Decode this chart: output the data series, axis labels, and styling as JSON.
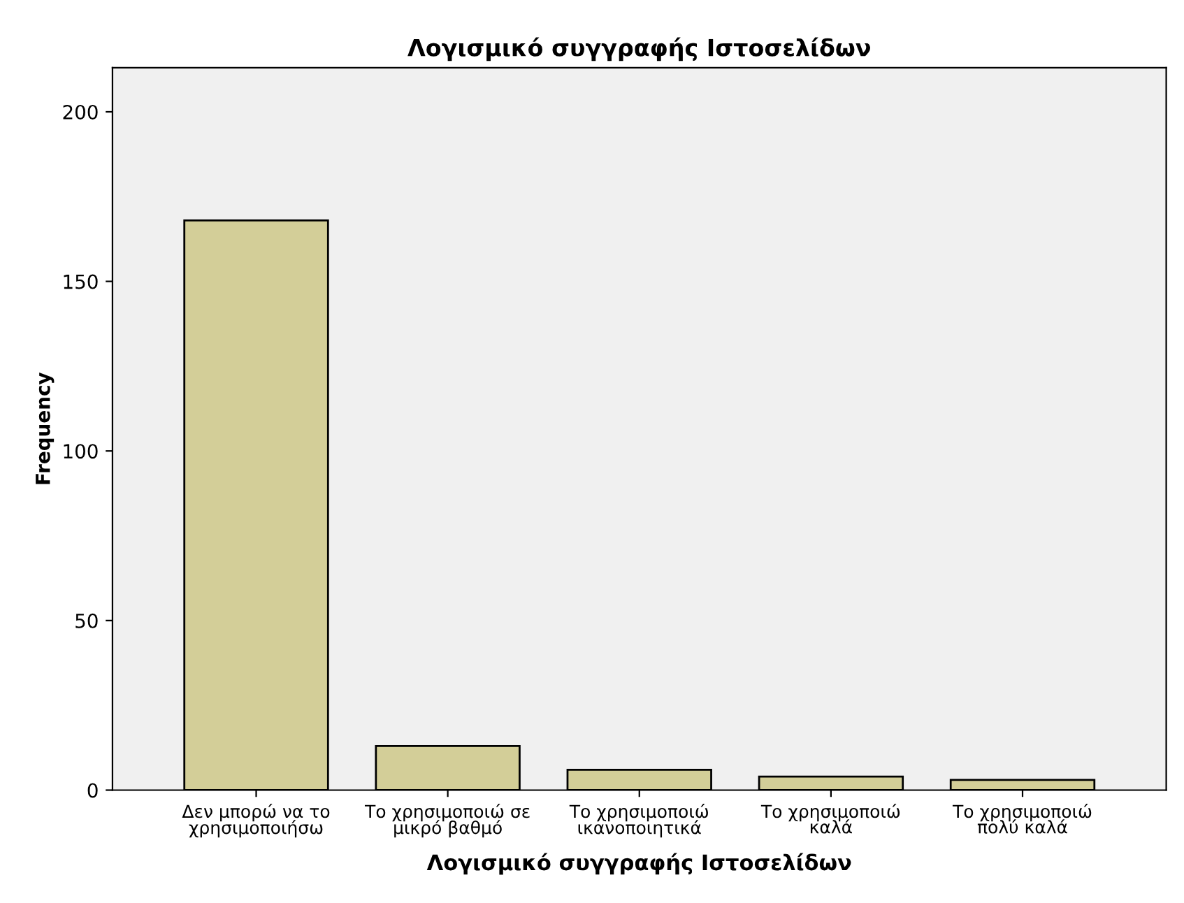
{
  "chart_data": {
    "type": "bar",
    "title": "Λογισμικό συγγραφής Ιστοσελίδων",
    "xlabel": "Λογισμικό συγγραφής Ιστοσελίδων",
    "ylabel": "Frequency",
    "categories": [
      "Δεν μπορώ να το\nχρησιμοποιήσω",
      "Το χρησιμοποιώ σε\nμικρό βαθμό",
      "Το χρησιμοποιώ\nικανοποιητικά",
      "Το χρησιμοποιώ\nκαλά",
      "Το χρησιμοποιώ\nπολύ καλά"
    ],
    "values": [
      168,
      13,
      6,
      4,
      3
    ],
    "color": "#d3ce98",
    "ylim": [
      0,
      213
    ],
    "yticks": [
      0,
      50,
      100,
      150,
      200
    ],
    "grid": false
  }
}
